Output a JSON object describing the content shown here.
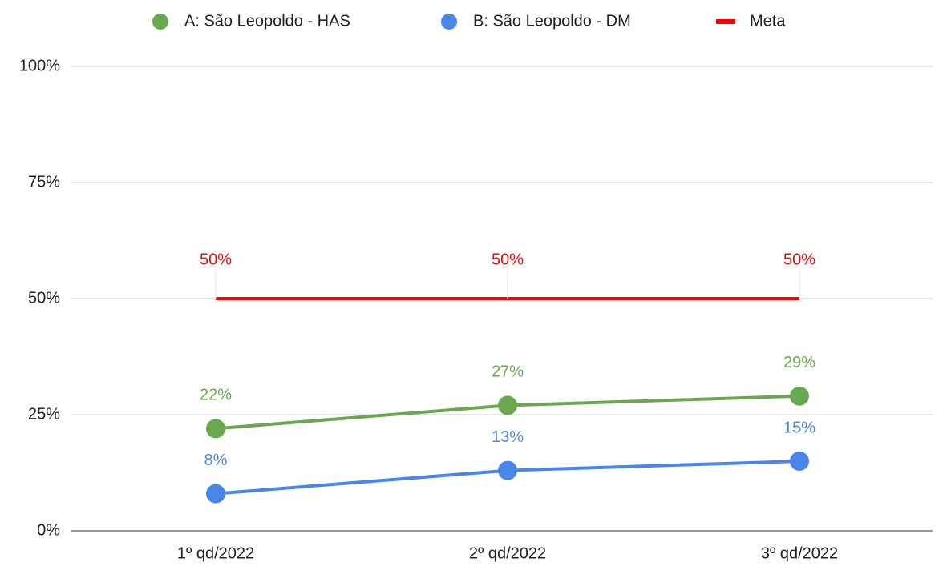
{
  "chart_data": {
    "type": "line",
    "categories": [
      "1º qd/2022",
      "2º qd/2022",
      "3º qd/2022"
    ],
    "series": [
      {
        "name": "A: São Leopoldo - HAS",
        "color": "#6aa84f",
        "markers": true,
        "values": [
          22,
          27,
          29
        ],
        "value_labels": [
          "22%",
          "27%",
          "29%"
        ]
      },
      {
        "name": "B: São Leopoldo - DM",
        "color": "#4a86e8",
        "markers": true,
        "values": [
          8,
          13,
          15
        ],
        "value_labels": [
          "8%",
          "13%",
          "15%"
        ]
      },
      {
        "name": "Meta",
        "color": "#ff0000",
        "markers": false,
        "values": [
          50,
          50,
          50
        ],
        "value_labels": [
          "50%",
          "50%",
          "50%"
        ]
      }
    ],
    "ylim": [
      0,
      100
    ],
    "yticks": [
      {
        "value": 0,
        "label": "0%"
      },
      {
        "value": 25,
        "label": "25%"
      },
      {
        "value": 50,
        "label": "50%"
      },
      {
        "value": 75,
        "label": "75%"
      },
      {
        "value": 100,
        "label": "100%"
      }
    ],
    "grid": true,
    "legend": "top"
  }
}
